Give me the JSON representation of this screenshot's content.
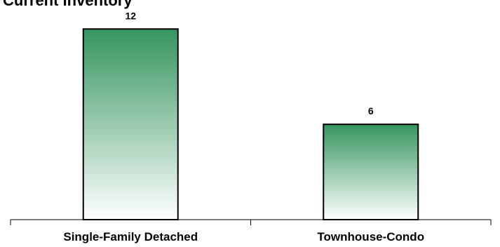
{
  "chart_data": {
    "type": "bar",
    "title": "Current Inventory",
    "categories": [
      "Single-Family Detached",
      "Townhouse-Condo"
    ],
    "values": [
      12,
      6
    ],
    "data_labels": [
      "12",
      "6"
    ],
    "xlabel": "",
    "ylabel": "",
    "ylim": [
      0,
      12.5
    ],
    "grid": false,
    "legend": "none",
    "colors": {
      "bar_top": "#35955f",
      "bar_bottom": "#ffffff",
      "bar_outline": "#000000",
      "axis": "#000000"
    }
  }
}
